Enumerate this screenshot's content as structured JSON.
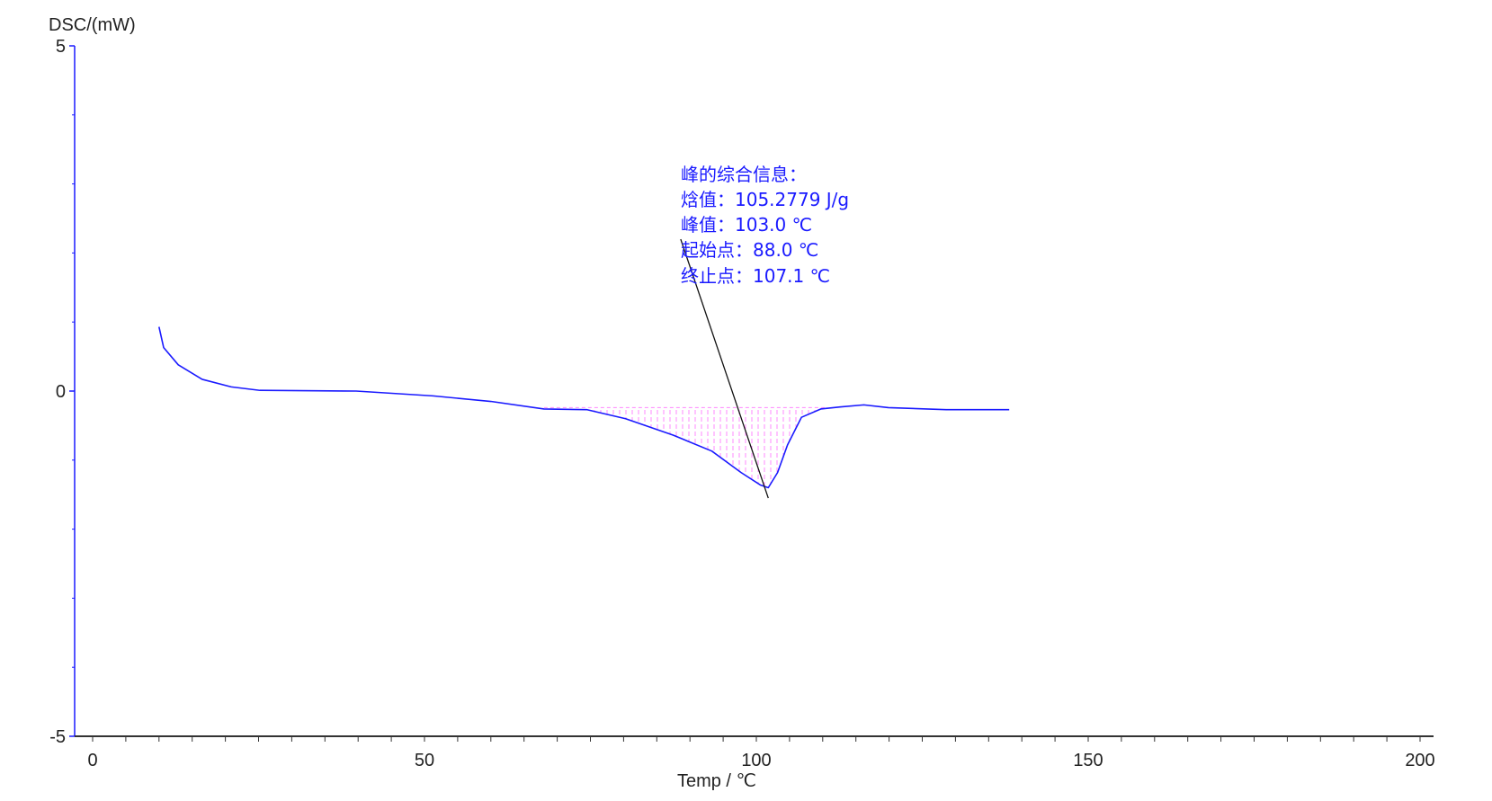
{
  "chart_data": {
    "type": "line",
    "xlabel": "Temp / ℃",
    "ylabel": "DSC/(mW)",
    "xlim": [
      0,
      200
    ],
    "ylim": [
      -5,
      5
    ],
    "x_ticks": [
      "0",
      "50",
      "100",
      "150",
      "200"
    ],
    "y_ticks": [
      "5",
      "0",
      "-5"
    ],
    "grid": false,
    "series": [
      {
        "color": "#1a1aff",
        "x": [
          10,
          10.7,
          12.9,
          16.5,
          20.9,
          25.2,
          39.7,
          51.3,
          60,
          68,
          74.5,
          80.3,
          87.5,
          93.3,
          97.7,
          100.6,
          101.8,
          103.2,
          104.7,
          106.8,
          109.7,
          112.6,
          116.2,
          119.9,
          128.6,
          138.1
        ],
        "y": [
          0.93,
          0.63,
          0.38,
          0.17,
          0.06,
          0.01,
          0,
          -0.07,
          -0.15,
          -0.26,
          -0.27,
          -0.4,
          -0.64,
          -0.87,
          -1.18,
          -1.36,
          -1.4,
          -1.18,
          -0.78,
          -0.38,
          -0.26,
          -0.23,
          -0.2,
          -0.24,
          -0.27,
          -0.27
        ]
      }
    ],
    "peak_area": {
      "color": "#ff88ff",
      "baseline_y": -0.24,
      "x_start": 68,
      "x_end": 110.7
    },
    "annotation": {
      "pointer_from": [
        101.8,
        -1.42
      ],
      "pointer_to": [
        88.6,
        2.2
      ],
      "color": "#1a1aff",
      "lines": [
        "峰的综合信息：",
        "焓值：105.2779 J/g",
        "峰值：103.0 ℃",
        "起始点：88.0 ℃",
        "终止点：107.1 ℃"
      ]
    }
  }
}
